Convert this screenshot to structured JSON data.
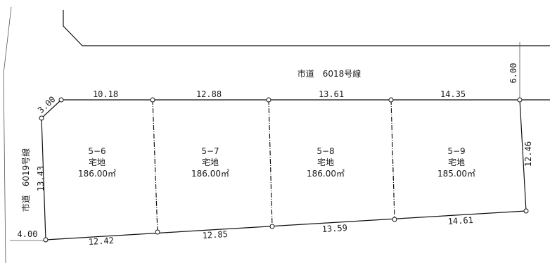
{
  "roads": {
    "north": {
      "name": "市道　6018号線",
      "width": "6.00"
    },
    "west": {
      "name": "市道　6019号線",
      "width": "4.00"
    }
  },
  "lots": [
    {
      "number": "5−6",
      "use": "宅地",
      "area": "186.00㎡"
    },
    {
      "number": "5−7",
      "use": "宅地",
      "area": "186.00㎡"
    },
    {
      "number": "5−8",
      "use": "宅地",
      "area": "186.00㎡"
    },
    {
      "number": "5−9",
      "use": "宅地",
      "area": "185.00㎡"
    }
  ],
  "dimensions": {
    "corner_cut": "3.00",
    "top": [
      "10.18",
      "12.88",
      "13.61",
      "14.35"
    ],
    "bottom": [
      "12.42",
      "12.85",
      "13.59",
      "14.61"
    ],
    "left_depth": "13.43",
    "right_depth": "12.46"
  }
}
